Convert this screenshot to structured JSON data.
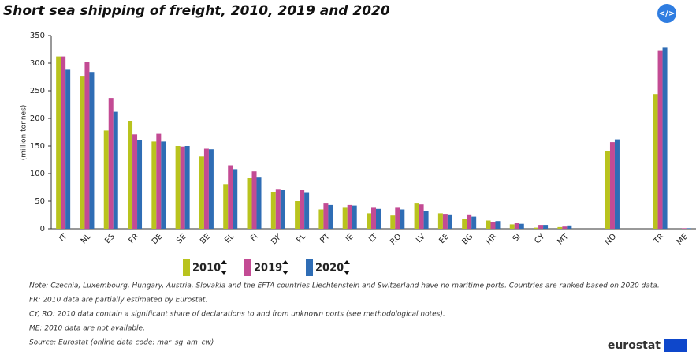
{
  "chart_data": {
    "type": "bar",
    "title": "Short sea shipping of freight, 2010, 2019 and 2020",
    "y_label": "(million tonnes)",
    "categories": [
      "IT",
      "NL",
      "ES",
      "FR",
      "DE",
      "SE",
      "BE",
      "EL",
      "FI",
      "DK",
      "PL",
      "PT",
      "IE",
      "LT",
      "RO",
      "LV",
      "EE",
      "BG",
      "HR",
      "SI",
      "CY",
      "MT",
      null,
      "NO",
      null,
      "TR",
      "ME"
    ],
    "series": [
      {
        "name": "2010",
        "color": "#b9c31e",
        "values": [
          312,
          277,
          178,
          195,
          158,
          150,
          131,
          81,
          92,
          67,
          50,
          35,
          38,
          28,
          24,
          47,
          28,
          18,
          15,
          8,
          2,
          3,
          null,
          140,
          null,
          244,
          null
        ]
      },
      {
        "name": "2019",
        "color": "#c34b94",
        "values": [
          312,
          302,
          237,
          171,
          172,
          149,
          145,
          115,
          104,
          71,
          70,
          47,
          43,
          38,
          38,
          44,
          27,
          26,
          12,
          10,
          7,
          4,
          null,
          157,
          null,
          322,
          1
        ]
      },
      {
        "name": "2020",
        "color": "#2f6db5",
        "values": [
          288,
          284,
          212,
          160,
          158,
          150,
          144,
          108,
          94,
          70,
          65,
          43,
          42,
          36,
          35,
          32,
          26,
          22,
          14,
          9,
          7,
          6,
          null,
          162,
          null,
          328,
          1
        ]
      }
    ],
    "ylim": [
      0,
      350
    ],
    "yticks": [
      0,
      50,
      100,
      150,
      200,
      250,
      300,
      350
    ],
    "notes": [
      "Note: Czechia, Luxembourg, Hungary, Austria, Slovakia and the EFTA countries Liechtenstein and Switzerland have no maritime ports. Countries are ranked based on 2020 data.",
      "FR: 2010 data are partially estimated by Eurostat.",
      "CY, RO: 2010 data contain a significant share of declarations to and from unknown ports (see methodological notes).",
      "ME: 2010 data are not available.",
      "Source: Eurostat (online data code: mar_sg_am_cw)"
    ],
    "logo": "eurostat",
    "embed_button": "</>"
  }
}
